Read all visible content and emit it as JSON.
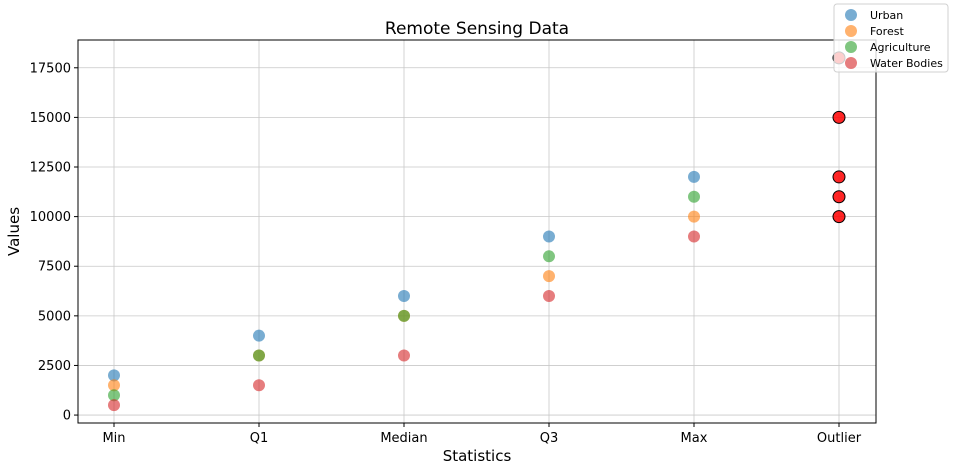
{
  "chart_data": {
    "type": "scatter",
    "title": "Remote Sensing Data",
    "xlabel": "Statistics",
    "ylabel": "Values",
    "categories": [
      "Min",
      "Q1",
      "Median",
      "Q3",
      "Max",
      "Outlier"
    ],
    "ylim": [
      -400,
      18900
    ],
    "yticks": [
      0,
      2500,
      5000,
      7500,
      10000,
      12500,
      15000,
      17500
    ],
    "ytick_labels": [
      "0",
      "2500",
      "5000",
      "7500",
      "10000",
      "12500",
      "15000",
      "17500"
    ],
    "grid": true,
    "legend_position": "top-right",
    "series": [
      {
        "name": "Urban",
        "color": "#1f77b4",
        "values": [
          2000,
          4000,
          6000,
          9000,
          12000
        ]
      },
      {
        "name": "Forest",
        "color": "#ff7f0e",
        "values": [
          1500,
          3000,
          5000,
          7000,
          10000
        ]
      },
      {
        "name": "Agriculture",
        "color": "#2ca02c",
        "values": [
          1000,
          3000,
          5000,
          8000,
          11000
        ]
      },
      {
        "name": "Water Bodies",
        "color": "#d62728",
        "values": [
          500,
          1500,
          3000,
          6000,
          9000
        ]
      }
    ],
    "outliers": {
      "category": "Outlier",
      "color": "#ff0000",
      "values": [
        18000,
        15000,
        12000,
        11000,
        10000
      ]
    }
  }
}
